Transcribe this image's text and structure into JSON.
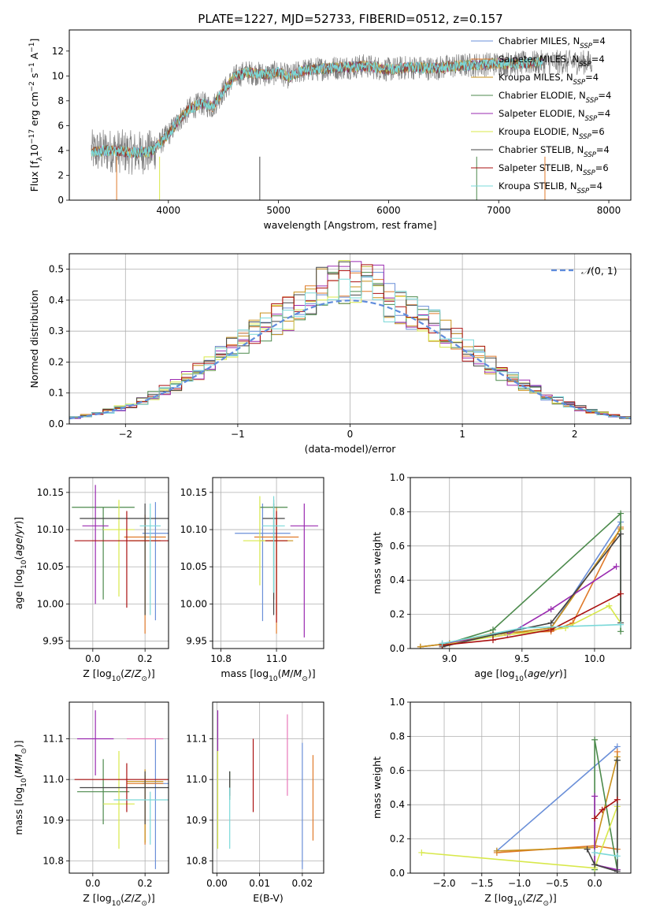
{
  "figure_title": "PLATE=1227, MJD=52733, FIBERID=0512, z=0.157",
  "colors": {
    "Chabrier MILES": "#6a8fd8",
    "Salpeter MILES": "#e07a2a",
    "Kroupa MILES": "#c8901a",
    "Chabrier ELODIE": "#4c8a4c",
    "Salpeter ELODIE": "#9a2ab0",
    "Kroupa ELODIE": "#d8e84a",
    "Chabrier STELIB": "#444444",
    "Salpeter STELIB": "#aa1010",
    "Kroupa STELIB": "#7ad8d8",
    "data": "#808080",
    "extra": "#e878b8"
  },
  "chart_data": [
    {
      "id": "spectrum",
      "type": "line",
      "title": "PLATE=1227, MJD=52733, FIBERID=0512, z=0.157",
      "xlabel": "wavelength [Angstrom, rest frame]",
      "ylabel_html": "Flux [f<tspan baseline-shift='sub' font-size='9'>λ</tspan>10<tspan baseline-shift='super' font-size='9'>−17</tspan> erg cm<tspan baseline-shift='super' font-size='9'>−2</tspan> s<tspan baseline-shift='super' font-size='9'>−1</tspan> A<tspan baseline-shift='super' font-size='9'>−1</tspan>]",
      "xlim": [
        3100,
        8200
      ],
      "ylim": [
        0,
        13.7
      ],
      "xticks": [
        4000,
        5000,
        6000,
        7000,
        8000
      ],
      "yticks": [
        0,
        2,
        4,
        6,
        8,
        10,
        12
      ],
      "continuum_points": [
        [
          3300,
          3.9
        ],
        [
          3500,
          4.0
        ],
        [
          3700,
          3.8
        ],
        [
          3850,
          3.9
        ],
        [
          4000,
          5.3
        ],
        [
          4100,
          6.5
        ],
        [
          4200,
          7.4
        ],
        [
          4300,
          7.8
        ],
        [
          4400,
          7.5
        ],
        [
          4500,
          8.8
        ],
        [
          4600,
          9.9
        ],
        [
          4700,
          10.3
        ],
        [
          4800,
          10.2
        ],
        [
          4900,
          10.1
        ],
        [
          5000,
          10.3
        ],
        [
          5100,
          9.9
        ],
        [
          5200,
          10.4
        ],
        [
          5400,
          10.6
        ],
        [
          5600,
          10.7
        ],
        [
          5800,
          10.8
        ],
        [
          6000,
          10.5
        ],
        [
          6200,
          10.7
        ],
        [
          6400,
          10.6
        ],
        [
          6600,
          10.8
        ],
        [
          6800,
          10.9
        ],
        [
          7000,
          11.0
        ],
        [
          7200,
          11.0
        ],
        [
          7400,
          11.1
        ]
      ],
      "data_range": [
        3300,
        7850
      ],
      "model_range": [
        3300,
        7400
      ],
      "legend": [
        {
          "label": "Chabrier MILES, N",
          "sub": "SSP",
          "tail": "=4"
        },
        {
          "label": "Salpeter MILES, N",
          "sub": "SSP",
          "tail": "=4"
        },
        {
          "label": "Kroupa MILES, N",
          "sub": "SSP",
          "tail": "=4"
        },
        {
          "label": "Chabrier ELODIE, N",
          "sub": "SSP",
          "tail": "=4"
        },
        {
          "label": "Salpeter ELODIE, N",
          "sub": "SSP",
          "tail": "=4"
        },
        {
          "label": "Kroupa ELODIE, N",
          "sub": "SSP",
          "tail": "=6"
        },
        {
          "label": "Chabrier STELIB, N",
          "sub": "SSP",
          "tail": "=4"
        },
        {
          "label": "Salpeter STELIB, N",
          "sub": "SSP",
          "tail": "=6"
        },
        {
          "label": "Kroupa STELIB, N",
          "sub": "SSP",
          "tail": "=4"
        }
      ],
      "legend_placement": "right",
      "grid": false
    },
    {
      "id": "residuals",
      "type": "area",
      "xlabel": "(data-model)/error",
      "ylabel": "Normed distribution",
      "xlim": [
        -2.5,
        2.5
      ],
      "ylim": [
        0,
        0.55
      ],
      "xticks": [
        -2,
        -1,
        0,
        1,
        2
      ],
      "yticks": [
        0.0,
        0.1,
        0.2,
        0.3,
        0.4,
        0.5
      ],
      "bin_width": 0.1,
      "legend": [
        "N(0,1)"
      ],
      "legend_placement": "top-right",
      "grid": true
    },
    {
      "id": "age_vs_Z",
      "type": "scatter",
      "xlabel": "Z [log10(Z/Zsun)]",
      "ylabel": "age [log10(age/yr)]",
      "xlim": [
        -0.09,
        0.29
      ],
      "ylim": [
        9.94,
        10.17
      ],
      "xticks": [
        0.0,
        0.2
      ],
      "yticks": [
        9.95,
        10.0,
        10.05,
        10.1,
        10.15
      ],
      "points": [
        {
          "model": "Chabrier MILES",
          "x": 0.24,
          "y": 10.095,
          "xerr": 0.05,
          "yerr": [
            0.117,
            0.042
          ]
        },
        {
          "model": "Salpeter MILES",
          "x": 0.2,
          "y": 10.09,
          "xerr": 0.08,
          "yerr": [
            0.13,
            0.03
          ]
        },
        {
          "model": "Kroupa MILES",
          "x": 0.2,
          "y": 10.085,
          "xerr": 0.06,
          "yerr": [
            0.1,
            0.03
          ]
        },
        {
          "model": "Chabrier ELODIE",
          "x": 0.04,
          "y": 10.13,
          "xerr": 0.12,
          "yerr": [
            0.124,
            0.0
          ]
        },
        {
          "model": "Salpeter ELODIE",
          "x": 0.01,
          "y": 10.105,
          "xerr": 0.05,
          "yerr": [
            0.105,
            0.055
          ]
        },
        {
          "model": "Kroupa ELODIE",
          "x": 0.1,
          "y": 10.1,
          "xerr": 0.06,
          "yerr": [
            0.09,
            0.04
          ]
        },
        {
          "model": "Chabrier STELIB",
          "x": 0.2,
          "y": 10.115,
          "xerr": 0.25,
          "yerr": [
            0.13,
            0.02
          ]
        },
        {
          "model": "Salpeter STELIB",
          "x": 0.13,
          "y": 10.085,
          "xerr": 0.2,
          "yerr": [
            0.09,
            0.04
          ]
        },
        {
          "model": "Kroupa STELIB",
          "x": 0.22,
          "y": 10.105,
          "xerr": 0.04,
          "yerr": [
            0.12,
            0.03
          ]
        }
      ],
      "grid": true
    },
    {
      "id": "age_vs_mass",
      "type": "scatter",
      "xlabel": "mass [log10(M/Msun)]",
      "ylabel": "",
      "xlim": [
        10.77,
        11.17
      ],
      "ylim": [
        9.94,
        10.17
      ],
      "xticks": [
        10.8,
        11.0
      ],
      "yticks": [
        9.95,
        10.0,
        10.05,
        10.1,
        10.15
      ],
      "points": [
        {
          "model": "Chabrier MILES",
          "x": 10.95,
          "y": 10.095,
          "xerr": 0.1,
          "yerr": [
            0.118,
            0.04
          ]
        },
        {
          "model": "Salpeter MILES",
          "x": 11.0,
          "y": 10.09,
          "xerr": 0.08,
          "yerr": [
            0.13,
            0.04
          ]
        },
        {
          "model": "Kroupa MILES",
          "x": 11.0,
          "y": 10.085,
          "xerr": 0.06,
          "yerr": [
            0.1,
            0.03
          ]
        },
        {
          "model": "Chabrier ELODIE",
          "x": 10.99,
          "y": 10.13,
          "xerr": 0.05,
          "yerr": [
            0.124,
            0.01
          ]
        },
        {
          "model": "Salpeter ELODIE",
          "x": 11.1,
          "y": 10.105,
          "xerr": 0.05,
          "yerr": [
            0.15,
            0.03
          ]
        },
        {
          "model": "Kroupa ELODIE",
          "x": 10.94,
          "y": 10.085,
          "xerr": 0.06,
          "yerr": [
            0.06,
            0.06
          ]
        },
        {
          "model": "Chabrier STELIB",
          "x": 10.99,
          "y": 10.115,
          "xerr": 0.04,
          "yerr": [
            0.13,
            0.02
          ]
        },
        {
          "model": "Salpeter STELIB",
          "x": 11.0,
          "y": 10.085,
          "xerr": 0.04,
          "yerr": [
            0.11,
            0.04
          ]
        },
        {
          "model": "Kroupa STELIB",
          "x": 10.99,
          "y": 10.105,
          "xerr": 0.04,
          "yerr": [
            0.09,
            0.04
          ]
        }
      ],
      "grid": true
    },
    {
      "id": "mass_weight_vs_age",
      "type": "line",
      "xlabel": "age [log10(age/yr)]",
      "ylabel": "mass weight",
      "xlim": [
        8.73,
        10.25
      ],
      "ylim": [
        0,
        1.0
      ],
      "xticks": [
        9.0,
        9.5,
        10.0
      ],
      "yticks": [
        0.0,
        0.2,
        0.4,
        0.6,
        0.8,
        1.0
      ],
      "series": [
        {
          "model": "Chabrier MILES",
          "x": [
            8.8,
            9.0,
            9.3,
            9.7,
            10.18
          ],
          "values": [
            0.01,
            0.03,
            0.08,
            0.12,
            0.74
          ]
        },
        {
          "model": "Salpeter MILES",
          "x": [
            8.8,
            9.0,
            9.3,
            9.7,
            9.85,
            10.18
          ],
          "values": [
            0.01,
            0.03,
            0.09,
            0.1,
            0.15,
            0.71
          ]
        },
        {
          "model": "Kroupa MILES",
          "x": [
            8.8,
            9.0,
            9.3,
            9.7,
            10.18
          ],
          "values": [
            0.01,
            0.03,
            0.08,
            0.12,
            0.7
          ]
        },
        {
          "model": "Chabrier ELODIE",
          "x": [
            8.95,
            9.3,
            10.18,
            10.18
          ],
          "values": [
            0.02,
            0.11,
            0.79,
            0.1
          ]
        },
        {
          "model": "Salpeter ELODIE",
          "x": [
            8.95,
            9.4,
            9.7,
            10.15
          ],
          "values": [
            0.03,
            0.08,
            0.23,
            0.48
          ]
        },
        {
          "model": "Kroupa ELODIE",
          "x": [
            8.95,
            9.3,
            9.8,
            10.1,
            10.18
          ],
          "values": [
            0.02,
            0.07,
            0.12,
            0.25,
            0.15
          ]
        },
        {
          "model": "Chabrier STELIB",
          "x": [
            8.95,
            9.3,
            9.7,
            10.18,
            10.18
          ],
          "values": [
            0.01,
            0.08,
            0.15,
            0.67,
            0.15
          ]
        },
        {
          "model": "Salpeter STELIB",
          "x": [
            8.95,
            9.3,
            9.7,
            10.18
          ],
          "values": [
            0.02,
            0.05,
            0.11,
            0.32
          ]
        },
        {
          "model": "Kroupa STELIB",
          "x": [
            8.95,
            9.5,
            10.18
          ],
          "values": [
            0.03,
            0.12,
            0.14
          ]
        }
      ],
      "grid": true
    },
    {
      "id": "mass_vs_Z",
      "type": "scatter",
      "xlabel": "Z [log10(Z/Zsun)]",
      "ylabel": "mass [log10(M/Msun)]",
      "xlim": [
        -0.09,
        0.29
      ],
      "ylim": [
        10.77,
        11.19
      ],
      "xticks": [
        0.0,
        0.2
      ],
      "yticks": [
        10.8,
        10.9,
        11.0,
        11.1
      ],
      "points": [
        {
          "model": "Chabrier MILES",
          "x": 0.24,
          "y": 10.99,
          "xerr": 0.05,
          "yerr": [
            0.21,
            0.11
          ]
        },
        {
          "model": "Salpeter MILES",
          "x": 0.2,
          "y": 10.99,
          "xerr": 0.07,
          "yerr": [
            0.15,
            0.02
          ]
        },
        {
          "model": "Kroupa MILES",
          "x": 0.2,
          "y": 10.995,
          "xerr": 0.07,
          "yerr": [
            0.15,
            0.03
          ]
        },
        {
          "model": "Chabrier ELODIE",
          "x": 0.04,
          "y": 10.97,
          "xerr": 0.1,
          "yerr": [
            0.08,
            0.08
          ]
        },
        {
          "model": "Salpeter ELODIE",
          "x": 0.01,
          "y": 11.1,
          "xerr": 0.07,
          "yerr": [
            0.09,
            0.07
          ]
        },
        {
          "model": "Kroupa ELODIE",
          "x": 0.1,
          "y": 10.94,
          "xerr": 0.06,
          "yerr": [
            0.11,
            0.13
          ]
        },
        {
          "model": "Chabrier STELIB",
          "x": 0.2,
          "y": 10.98,
          "xerr": 0.25,
          "yerr": [
            0.09,
            0.04
          ]
        },
        {
          "model": "Salpeter STELIB",
          "x": 0.13,
          "y": 11.0,
          "xerr": 0.2,
          "yerr": [
            0.08,
            0.04
          ]
        },
        {
          "model": "Kroupa STELIB",
          "x": 0.22,
          "y": 10.95,
          "xerr": 0.14,
          "yerr": [
            0.11,
            0.02
          ]
        },
        {
          "model": "extra",
          "x": 0.2,
          "y": 11.1,
          "xerr": 0.07,
          "yerr": [
            0.0,
            0.0
          ]
        }
      ],
      "grid": true
    },
    {
      "id": "mass_vs_ebv",
      "type": "scatter",
      "xlabel": "E(B-V)",
      "ylabel": "",
      "xlim": [
        -0.001,
        0.025
      ],
      "ylim": [
        10.77,
        11.19
      ],
      "xticks": [
        0.0,
        0.01,
        0.02
      ],
      "yticks": [
        10.8,
        10.9,
        11.0,
        11.1
      ],
      "points": [
        {
          "model": "Chabrier MILES",
          "x": 0.02,
          "y": 11.0,
          "yerr": [
            0.22,
            0.09
          ]
        },
        {
          "model": "Salpeter MILES",
          "x": 0.0225,
          "y": 10.95,
          "yerr": [
            0.1,
            0.11
          ]
        },
        {
          "model": "Chabrier ELODIE",
          "x": 0.003,
          "y": 10.97,
          "yerr": [
            0.02,
            0.05
          ]
        },
        {
          "model": "Salpeter ELODIE",
          "x": 0.0002,
          "y": 11.1,
          "yerr": [
            0.03,
            0.07
          ]
        },
        {
          "model": "Kroupa ELODIE",
          "x": 0.0002,
          "y": 10.99,
          "yerr": [
            0.16,
            0.08
          ]
        },
        {
          "model": "Chabrier STELIB",
          "x": 0.003,
          "y": 11.0,
          "yerr": [
            0.04,
            0.02
          ]
        },
        {
          "model": "Salpeter STELIB",
          "x": 0.0085,
          "y": 11.01,
          "yerr": [
            0.09,
            0.09
          ]
        },
        {
          "model": "Kroupa STELIB",
          "x": 0.003,
          "y": 10.93,
          "yerr": [
            0.1,
            0.05
          ]
        },
        {
          "model": "extra",
          "x": 0.0165,
          "y": 11.06,
          "yerr": [
            0.1,
            0.1
          ]
        }
      ],
      "grid": true
    },
    {
      "id": "mass_weight_vs_Z",
      "type": "line",
      "xlabel": "Z [log10(Z/Zsun)]",
      "ylabel": "mass weight",
      "xlim": [
        -2.45,
        0.48
      ],
      "ylim": [
        0,
        1.0
      ],
      "xticks": [
        -2.0,
        -1.5,
        -1.0,
        -0.5,
        0.0
      ],
      "yticks": [
        0.0,
        0.2,
        0.4,
        0.6,
        0.8,
        1.0
      ],
      "series": [
        {
          "model": "Chabrier MILES",
          "x": [
            -1.3,
            0.3
          ],
          "values": [
            0.13,
            0.74
          ]
        },
        {
          "model": "Salpeter MILES",
          "x": [
            -1.3,
            0.0,
            0.3,
            0.3
          ],
          "values": [
            0.12,
            0.16,
            0.14,
            0.71
          ]
        },
        {
          "model": "Kroupa MILES",
          "x": [
            -1.3,
            0.0,
            0.3
          ],
          "values": [
            0.13,
            0.15,
            0.68
          ]
        },
        {
          "model": "Chabrier ELODIE",
          "x": [
            0.0,
            0.0,
            0.3,
            0.3
          ],
          "values": [
            0.02,
            0.78,
            0.02,
            0.66
          ]
        },
        {
          "model": "Salpeter ELODIE",
          "x": [
            0.0,
            0.0,
            0.3
          ],
          "values": [
            0.45,
            0.05,
            0.02
          ]
        },
        {
          "model": "Kroupa ELODIE",
          "x": [
            -2.3,
            0.0,
            0.3
          ],
          "values": [
            0.12,
            0.03,
            0.39
          ]
        },
        {
          "model": "Chabrier STELIB",
          "x": [
            -0.1,
            0.0,
            0.3,
            0.3
          ],
          "values": [
            0.14,
            0.05,
            0.01,
            0.66
          ]
        },
        {
          "model": "Salpeter STELIB",
          "x": [
            0.0,
            0.1,
            0.3
          ],
          "values": [
            0.32,
            0.37,
            0.43
          ]
        },
        {
          "model": "Kroupa STELIB",
          "x": [
            0.0,
            0.3
          ],
          "values": [
            0.12,
            0.1
          ]
        }
      ],
      "grid": true
    }
  ]
}
